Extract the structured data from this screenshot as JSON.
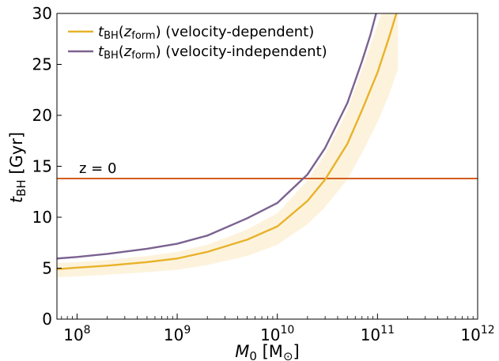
{
  "chart_data": {
    "type": "line",
    "xlabel": {
      "main": "M",
      "sub": "0",
      "unit": " [M",
      "unit_sub": "⊙",
      "close": "]"
    },
    "ylabel": {
      "main": "t",
      "sub": "BH",
      "unit": " [Gyr]"
    },
    "xscale": "log",
    "xlim": [
      63000000.0,
      1000000000000.0
    ],
    "ylim": [
      0,
      30
    ],
    "yticks": [
      0,
      5,
      10,
      15,
      20,
      25,
      30
    ],
    "xticks": [
      {
        "value": 100000000.0,
        "base": "10",
        "exp": "8"
      },
      {
        "value": 1000000000.0,
        "base": "10",
        "exp": "9"
      },
      {
        "value": 10000000000.0,
        "base": "10",
        "exp": "10"
      },
      {
        "value": 100000000000.0,
        "base": "10",
        "exp": "11"
      },
      {
        "value": 1000000000000.0,
        "base": "10",
        "exp": "12"
      }
    ],
    "grid": false,
    "legend_position": "upper-left",
    "series": [
      {
        "name": "t_BH(z_form) (velocity-dependent)",
        "legend": {
          "t": "t",
          "t_sub": "BH",
          "z": "z",
          "z_sub": "form",
          "suffix": ") (velocity-dependent)"
        },
        "color": "#E8B22A",
        "band_color": "#FDF3DC",
        "x": [
          63000000.0,
          100000000.0,
          200000000.0,
          500000000.0,
          1000000000.0,
          2000000000.0,
          5000000000.0,
          10000000000.0,
          20000000000.0,
          30000000000.0,
          50000000000.0,
          70000000000.0,
          100000000000.0,
          130000000000.0,
          160000000000.0
        ],
        "y": [
          4.9,
          5.05,
          5.25,
          5.6,
          5.95,
          6.6,
          7.8,
          9.1,
          11.6,
          13.7,
          17.2,
          20.5,
          24.2,
          27.6,
          30.5
        ],
        "band_lower": [
          4.1,
          4.2,
          4.35,
          4.6,
          4.85,
          5.3,
          6.2,
          7.3,
          9.3,
          11.0,
          13.7,
          16.3,
          19.3,
          22.0,
          24.5
        ],
        "band_upper": [
          5.5,
          5.6,
          5.8,
          6.2,
          6.6,
          7.3,
          8.8,
          10.4,
          13.6,
          16.2,
          20.5,
          24.5,
          28.9,
          32.0,
          34.0
        ]
      },
      {
        "name": "t_BH(z_form) (velocity-independent)",
        "legend": {
          "t": "t",
          "t_sub": "BH",
          "z": "z",
          "z_sub": "form",
          "suffix": ") (velocity-independent)"
        },
        "color": "#7B6290",
        "x": [
          63000000.0,
          100000000.0,
          200000000.0,
          500000000.0,
          1000000000.0,
          2000000000.0,
          5000000000.0,
          10000000000.0,
          20000000000.0,
          30000000000.0,
          50000000000.0,
          70000000000.0,
          85000000000.0,
          100000000000.0
        ],
        "y": [
          5.95,
          6.1,
          6.4,
          6.9,
          7.4,
          8.2,
          9.9,
          11.4,
          14.2,
          16.8,
          21.2,
          25.3,
          27.9,
          30.5
        ]
      }
    ],
    "hline": {
      "y": 13.8,
      "color": "#D45E1E",
      "label": "z = 0"
    }
  }
}
